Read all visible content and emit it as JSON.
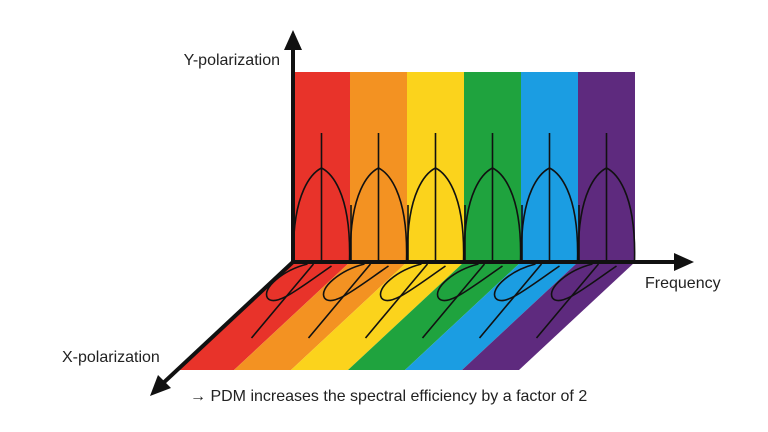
{
  "axes": {
    "y_label": "Y-polarization",
    "frequency_label": "Frequency",
    "x_label": "X-polarization"
  },
  "caption": "→ PDM increases the spectral efficiency by a factor of 2"
}
